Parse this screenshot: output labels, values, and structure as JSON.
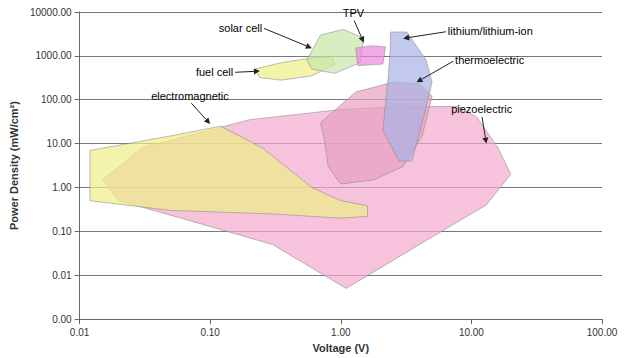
{
  "chart_data": {
    "type": "polygon",
    "x_label": "Voltage (V)",
    "y_label": "Power Density (mW/cm²)",
    "log": true,
    "grid": true,
    "xlim": [
      0.01,
      100
    ],
    "ylim": [
      0.001,
      10000
    ],
    "xticks": [
      0.01,
      {
        "value": 0.1,
        "label": "0.10"
      },
      {
        "value": 1,
        "label": "1.00"
      },
      {
        "value": 10,
        "label": "10.00"
      },
      {
        "value": 100,
        "label": "100.00"
      }
    ],
    "yticks": [
      {
        "value": 0.001,
        "label": "0.00"
      },
      0.01,
      {
        "value": 0.1,
        "label": "0.10"
      },
      {
        "value": 1,
        "label": "1.00"
      },
      {
        "value": 10,
        "label": "10.00"
      },
      {
        "value": 100,
        "label": "100.00"
      },
      {
        "value": 1000,
        "label": "1000.00"
      },
      {
        "value": 10000,
        "label": "10000.00"
      }
    ],
    "series": [
      {
        "name": "piezoelectric",
        "color": "#f4a8cc",
        "values": [
          [
            0.015,
            1.5
          ],
          [
            0.03,
            8
          ],
          [
            0.2,
            35
          ],
          [
            1,
            60
          ],
          [
            3,
            70
          ],
          [
            8,
            70
          ],
          [
            11,
            40
          ],
          [
            16,
            8
          ],
          [
            20,
            2
          ],
          [
            13,
            0.4
          ],
          [
            4,
            0.05
          ],
          [
            1.1,
            0.005
          ],
          [
            0.3,
            0.05
          ],
          [
            0.06,
            0.2
          ],
          [
            0.02,
            0.5
          ]
        ]
      },
      {
        "name": "electromagnetic",
        "color": "#eeee88",
        "values": [
          [
            0.012,
            7
          ],
          [
            0.05,
            15
          ],
          [
            0.12,
            25
          ],
          [
            0.25,
            8
          ],
          [
            0.6,
            1.0
          ],
          [
            1.0,
            0.5
          ],
          [
            1.6,
            0.38
          ],
          [
            1.6,
            0.22
          ],
          [
            1.0,
            0.2
          ],
          [
            0.3,
            0.25
          ],
          [
            0.05,
            0.3
          ],
          [
            0.012,
            0.5
          ]
        ]
      },
      {
        "name": "thermoelectric",
        "color": "#e8a0c0",
        "values": [
          [
            0.7,
            30
          ],
          [
            1.3,
            150
          ],
          [
            2.5,
            250
          ],
          [
            4,
            230
          ],
          [
            5,
            120
          ],
          [
            4.2,
            15
          ],
          [
            3,
            3
          ],
          [
            1.8,
            1.5
          ],
          [
            1.0,
            1.2
          ],
          [
            0.8,
            3
          ],
          [
            0.75,
            12
          ]
        ]
      },
      {
        "name": "lithium/lithium-ion",
        "color": "#aab2e4",
        "values": [
          [
            2.4,
            3500
          ],
          [
            3.2,
            3500
          ],
          [
            4.5,
            800
          ],
          [
            5,
            250
          ],
          [
            4.3,
            40
          ],
          [
            3.5,
            4
          ],
          [
            2.8,
            4
          ],
          [
            2.1,
            20
          ],
          [
            2.3,
            300
          ],
          [
            2.4,
            1500
          ]
        ]
      },
      {
        "name": "fuel cell",
        "color": "#eeee88",
        "values": [
          [
            0.22,
            500
          ],
          [
            0.35,
            700
          ],
          [
            0.6,
            900
          ],
          [
            0.85,
            950
          ],
          [
            0.9,
            650
          ],
          [
            0.6,
            350
          ],
          [
            0.35,
            280
          ],
          [
            0.24,
            320
          ]
        ]
      },
      {
        "name": "solar cell",
        "color": "#c6e6a8",
        "values": [
          [
            0.55,
            800
          ],
          [
            0.7,
            3000
          ],
          [
            1.05,
            4000
          ],
          [
            1.5,
            2500
          ],
          [
            1.4,
            700
          ],
          [
            0.9,
            400
          ],
          [
            0.6,
            500
          ]
        ]
      },
      {
        "name": "TPV",
        "color": "#ee88dd",
        "values": [
          [
            1.3,
            1500
          ],
          [
            1.7,
            1700
          ],
          [
            2.2,
            1600
          ],
          [
            2.1,
            650
          ],
          [
            1.35,
            600
          ]
        ]
      }
    ],
    "annotations": [
      {
        "text": "solar cell",
        "x": 0.25,
        "y": 4400,
        "arrow_to": [
          0.6,
          1500
        ]
      },
      {
        "text": "TPV",
        "x": 1.25,
        "y": 7000,
        "arrow_to": [
          1.5,
          2000
        ]
      },
      {
        "text": "lithium/lithium-ion",
        "x": 6.6,
        "y": 3600,
        "arrow_to": [
          3,
          2500
        ]
      },
      {
        "text": "thermoelectric",
        "x": 7.5,
        "y": 800,
        "arrow_to": [
          3.8,
          250
        ]
      },
      {
        "text": "fuel cell",
        "x": 0.15,
        "y": 420,
        "arrow_to": [
          0.24,
          450
        ]
      },
      {
        "text": "electromagnetic",
        "x": 0.07,
        "y": 90,
        "arrow_to": [
          0.1,
          28
        ]
      },
      {
        "text": "piezoelectric",
        "x": 12,
        "y": 45,
        "arrow_to": [
          13,
          10
        ]
      }
    ]
  }
}
